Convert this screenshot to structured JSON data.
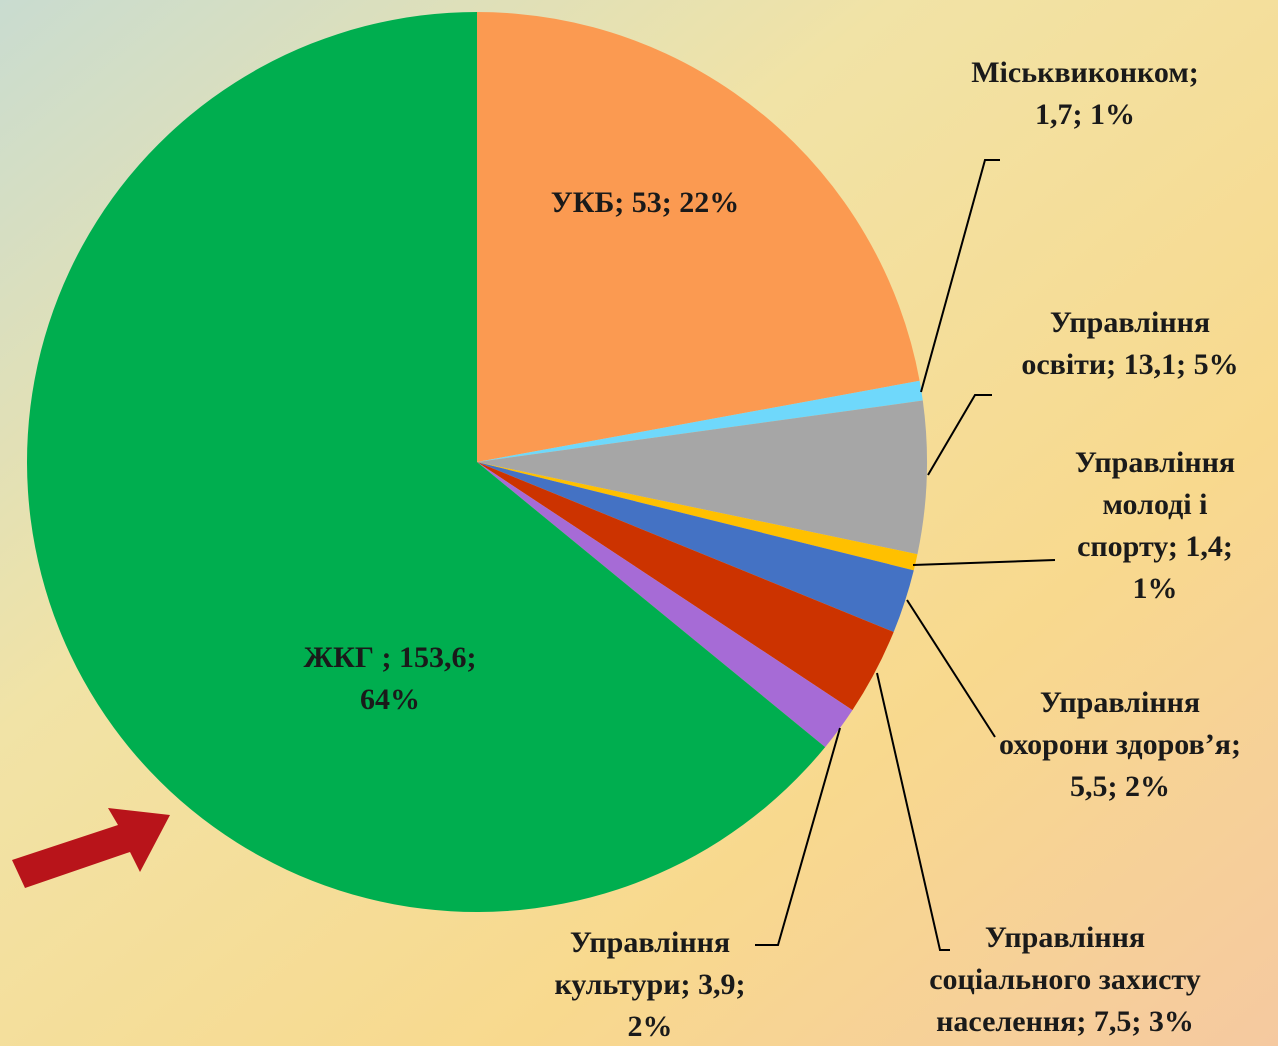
{
  "chart_data": {
    "type": "pie",
    "values": [
      53,
      1.7,
      13.1,
      1.4,
      5.5,
      7.5,
      3.9,
      153.6
    ],
    "colors": [
      "#fb9a51",
      "#6fd8fb",
      "#a6a6a6",
      "#ffc000",
      "#4472c4",
      "#cc3300",
      "#a66bd6",
      "#00ae4f"
    ],
    "labels": [
      [
        "УКБ; 53; 22%"
      ],
      [
        "Міськвиконком;",
        "1,7; 1%"
      ],
      [
        "Управління",
        "освіти; 13,1; 5%"
      ],
      [
        "Управління",
        "молоді і",
        "спорту; 1,4;",
        "1%"
      ],
      [
        "Управління",
        "охорони здоров’я;",
        "5,5; 2%"
      ],
      [
        "Управління",
        "соціального захисту",
        "населення; 7,5; 3%"
      ],
      [
        "Управління",
        "культури; 3,9;",
        "2%"
      ],
      [
        "ЖКГ ; 153,6;",
        "64%"
      ]
    ]
  }
}
